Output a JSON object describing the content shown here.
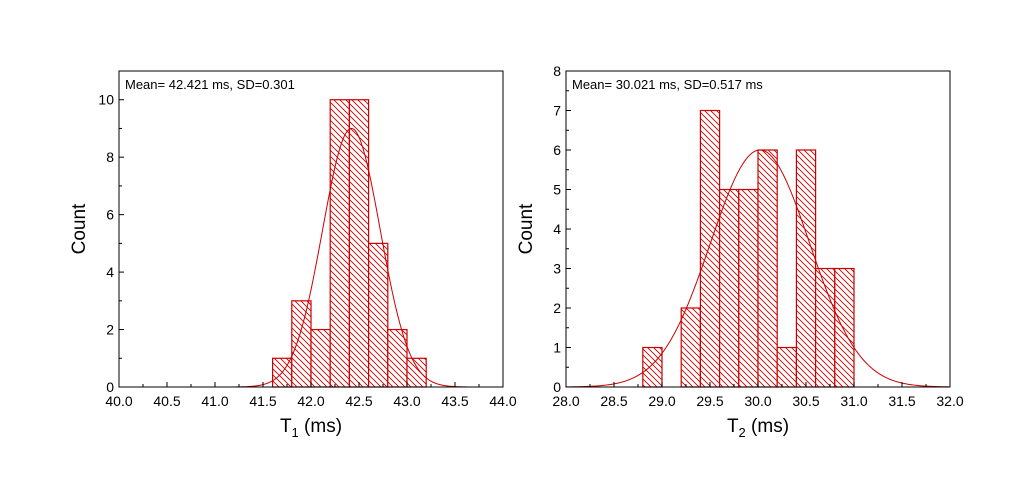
{
  "colors": {
    "bar": "#cc0000",
    "fit": "#cc0000",
    "axis": "#000000"
  },
  "chart_data": [
    {
      "type": "bar",
      "subtype": "histogram-with-gaussian-fit",
      "annotation": "Mean= 42.421 ms, SD=0.301",
      "xlabel_main": "T",
      "xlabel_sub": "1",
      "xlabel_unit": " (ms)",
      "ylabel": "Count",
      "xlim": [
        40.0,
        44.0
      ],
      "ylim": [
        0,
        11
      ],
      "xticks": [
        "40.0",
        "40.5",
        "41.0",
        "41.5",
        "42.0",
        "42.5",
        "43.0",
        "43.5",
        "44.0"
      ],
      "yticks": [
        "0",
        "2",
        "4",
        "6",
        "8",
        "10"
      ],
      "bin_width": 0.2,
      "bins": [
        {
          "start": 41.6,
          "count": 1
        },
        {
          "start": 41.8,
          "count": 3
        },
        {
          "start": 42.0,
          "count": 2
        },
        {
          "start": 42.2,
          "count": 10
        },
        {
          "start": 42.4,
          "count": 10
        },
        {
          "start": 42.6,
          "count": 5
        },
        {
          "start": 42.8,
          "count": 2
        },
        {
          "start": 43.0,
          "count": 1
        }
      ],
      "fit": {
        "mean": 42.421,
        "sd": 0.301,
        "peak": 9.0
      },
      "grid": false,
      "hatch": "diagonal"
    },
    {
      "type": "bar",
      "subtype": "histogram-with-gaussian-fit",
      "annotation": "Mean= 30.021 ms, SD=0.517 ms",
      "xlabel_main": "T",
      "xlabel_sub": "2",
      "xlabel_unit": " (ms)",
      "ylabel": "Count",
      "xlim": [
        28.0,
        32.0
      ],
      "ylim": [
        0,
        8
      ],
      "xticks": [
        "28.0",
        "28.5",
        "29.0",
        "29.5",
        "30.0",
        "30.5",
        "31.0",
        "31.5",
        "32.0"
      ],
      "yticks": [
        "0",
        "1",
        "2",
        "3",
        "4",
        "5",
        "6",
        "7",
        "8"
      ],
      "bin_width": 0.2,
      "bins": [
        {
          "start": 28.8,
          "count": 1
        },
        {
          "start": 29.2,
          "count": 2
        },
        {
          "start": 29.4,
          "count": 7
        },
        {
          "start": 29.6,
          "count": 5
        },
        {
          "start": 29.8,
          "count": 5
        },
        {
          "start": 30.0,
          "count": 6
        },
        {
          "start": 30.2,
          "count": 1
        },
        {
          "start": 30.4,
          "count": 6
        },
        {
          "start": 30.6,
          "count": 3
        },
        {
          "start": 30.8,
          "count": 3
        }
      ],
      "fit": {
        "mean": 30.021,
        "sd": 0.517,
        "peak": 6.0
      },
      "grid": false,
      "hatch": "diagonal"
    }
  ]
}
